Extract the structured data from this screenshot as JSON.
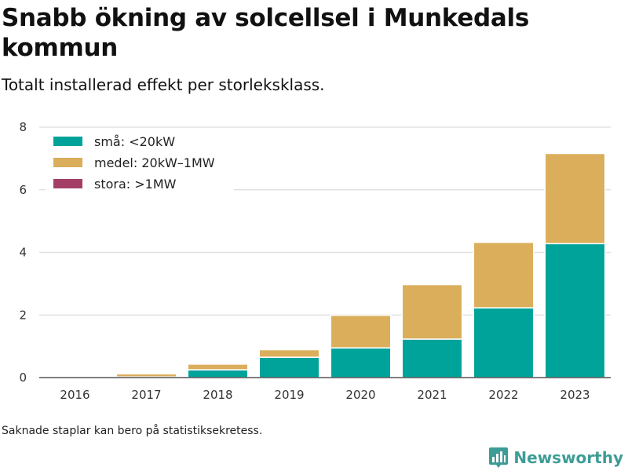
{
  "title": "Snabb ökning av solcellsel i Munkedals kommun",
  "subtitle": "Totalt installerad effekt per storleksklass.",
  "footnote": "Saknade staplar kan bero på statistiksekretess.",
  "brand": {
    "name": "Newsworthy",
    "icon": "bar-chart-logo-icon",
    "color": "#3d9d96"
  },
  "chart_data": {
    "type": "bar",
    "stacked": true,
    "categories": [
      "2016",
      "2017",
      "2018",
      "2019",
      "2020",
      "2021",
      "2022",
      "2023"
    ],
    "series": [
      {
        "name": "små: <20kW",
        "color": "#00a39a",
        "values": [
          0,
          0.02,
          0.25,
          0.65,
          0.95,
          1.23,
          2.23,
          4.28
        ]
      },
      {
        "name": "medel: 20kW–1MW",
        "color": "#dbae5b",
        "values": [
          0,
          0.1,
          0.18,
          0.24,
          1.04,
          1.74,
          2.09,
          2.88
        ]
      },
      {
        "name": "stora: >1MW",
        "color": "#a33e66",
        "values": [
          0,
          0,
          0,
          0,
          0,
          0,
          0,
          0
        ]
      }
    ],
    "ylim": [
      0,
      8
    ],
    "yticks": [
      0,
      2,
      4,
      6,
      8
    ],
    "grid": true,
    "legend": "top-left",
    "xlabel": "",
    "ylabel": ""
  }
}
